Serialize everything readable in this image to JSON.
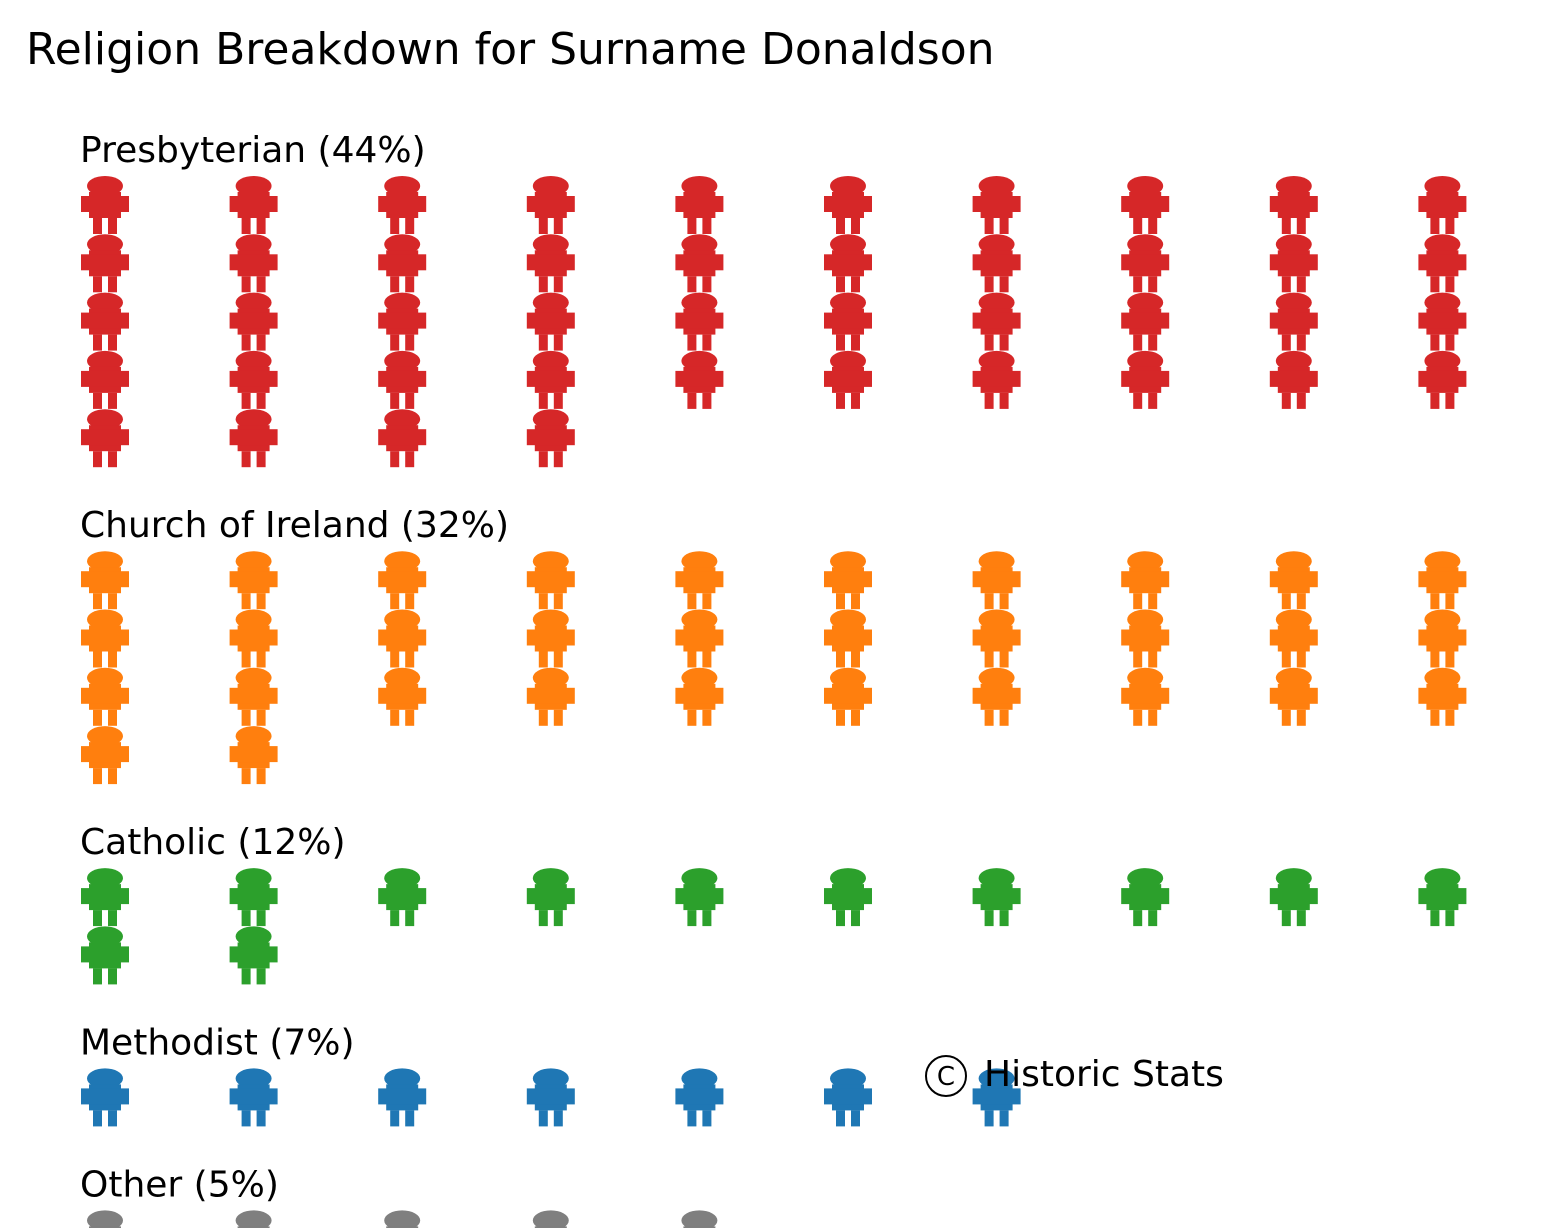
{
  "chart_data": {
    "type": "waffle",
    "title": "Religion Breakdown for Surname Donaldson",
    "icon": "person-icon",
    "icons_per_row": 10,
    "total_icons": 100,
    "grid": false,
    "legend": "none",
    "groups": [
      {
        "name": "Presbyterian",
        "percent": 44,
        "label": "Presbyterian (44%)",
        "color": "#d62728"
      },
      {
        "name": "Church of Ireland",
        "percent": 32,
        "label": "Church of Ireland (32%)",
        "color": "#ff7f0e"
      },
      {
        "name": "Catholic",
        "percent": 12,
        "label": "Catholic (12%)",
        "color": "#2ca02c"
      },
      {
        "name": "Methodist",
        "percent": 7,
        "label": "Methodist (7%)",
        "color": "#1f77b4"
      },
      {
        "name": "Other",
        "percent": 5,
        "label": "Other (5%)",
        "color": "#7f7f7f"
      }
    ],
    "credit": {
      "symbol": "C",
      "text": "Historic Stats"
    }
  }
}
